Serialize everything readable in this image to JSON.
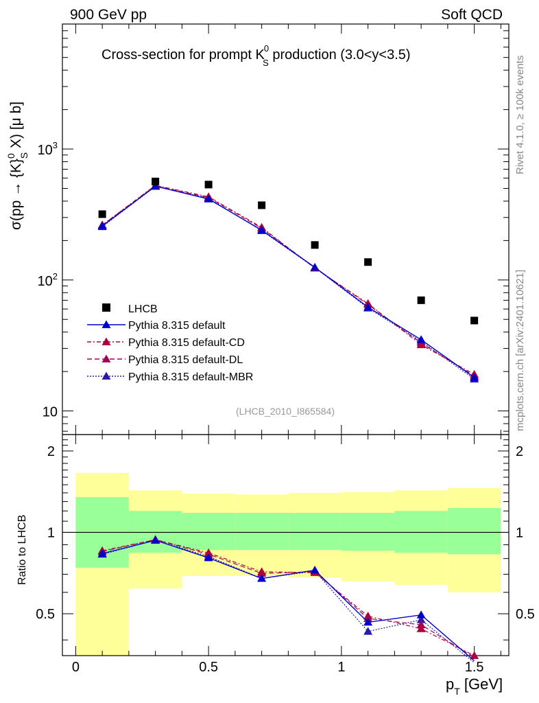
{
  "header": {
    "energy": "900 GeV pp",
    "process": "Soft QCD"
  },
  "side": {
    "rivet": "Rivet 4.1.0, ≥ 100k events",
    "site": "mcplots.cern.ch [arXiv:2401.10621]"
  },
  "colors": {
    "data": "#000000",
    "default": "#0000cc",
    "cd": "#b0003a",
    "dl": "#a0005a",
    "mbr": "#2a1aa8",
    "band_inner": "#99ff99",
    "band_outer": "#ffff99"
  },
  "chart_data": {
    "type": "line",
    "title": "Cross-section for prompt K",
    "title_sup": "0",
    "title_sub": "S",
    "title_tail": " production (3.0<y<3.5)",
    "analysis_tag": "(LHCB_2010_I865584)",
    "xlabel_main": "p",
    "xlabel_sub": "T",
    "xlabel_unit": " [GeV]",
    "ylabel_pre": "σ(pp → {K}",
    "ylabel_sup": "0",
    "ylabel_sub": "S",
    "ylabel_post": " X) [μ b]",
    "ratio_ylabel": "Ratio to LHCB",
    "xlim": [
      -0.05,
      1.63
    ],
    "ylim": [
      6.6,
      9000
    ],
    "ratio_ylim": [
      0.35,
      2.3
    ],
    "x_ticks": [
      0,
      0.5,
      1,
      1.5
    ],
    "x_tick_labels": [
      "0",
      "0.5",
      "1",
      "1.5"
    ],
    "y_ticks": [
      10,
      100,
      1000
    ],
    "y_tick_labels": [
      "10",
      "10",
      "10"
    ],
    "y_tick_sups": [
      "",
      "2",
      "3"
    ],
    "ratio_ticks": [
      0.5,
      1,
      2
    ],
    "ratio_tick_labels": [
      "0.5",
      "1",
      "2"
    ],
    "x": [
      0.1,
      0.3,
      0.5,
      0.7,
      0.9,
      1.1,
      1.3,
      1.5
    ],
    "bin_edges": [
      0,
      0.2,
      0.4,
      0.6,
      0.8,
      1.0,
      1.2,
      1.4,
      1.6
    ],
    "data": {
      "name": "LHCB",
      "values": [
        318,
        565,
        535,
        372,
        185,
        137,
        70,
        49
      ]
    },
    "ratio_band_inner": [
      [
        0.74,
        1.35
      ],
      [
        0.84,
        1.2
      ],
      [
        0.86,
        1.18
      ],
      [
        0.86,
        1.18
      ],
      [
        0.86,
        1.18
      ],
      [
        0.855,
        1.18
      ],
      [
        0.84,
        1.2
      ],
      [
        0.83,
        1.23
      ]
    ],
    "ratio_band_outer": [
      [
        0.35,
        1.66
      ],
      [
        0.62,
        1.43
      ],
      [
        0.69,
        1.39
      ],
      [
        0.69,
        1.38
      ],
      [
        0.68,
        1.4
      ],
      [
        0.66,
        1.41
      ],
      [
        0.64,
        1.43
      ],
      [
        0.6,
        1.46
      ]
    ],
    "series": [
      {
        "name": "Pythia 8.315 default",
        "key": "default",
        "values": [
          258,
          520,
          415,
          240,
          125,
          62,
          35,
          18
        ],
        "ratio": [
          0.835,
          0.935,
          0.805,
          0.675,
          0.725,
          0.465,
          0.495,
          0.335
        ]
      },
      {
        "name": "Pythia 8.315 default-CD",
        "key": "cd",
        "values": [
          263,
          528,
          432,
          252,
          123,
          66,
          32,
          19
        ],
        "ratio": [
          0.855,
          0.94,
          0.84,
          0.715,
          0.71,
          0.49,
          0.44,
          0.35
        ]
      },
      {
        "name": "Pythia 8.315 default-DL",
        "key": "dl",
        "values": [
          262,
          525,
          425,
          248,
          124,
          65,
          33,
          18.5
        ],
        "ratio": [
          0.85,
          0.94,
          0.83,
          0.705,
          0.715,
          0.48,
          0.455,
          0.345
        ]
      },
      {
        "name": "Pythia 8.315 default-MBR",
        "key": "mbr",
        "values": [
          255,
          518,
          420,
          238,
          124,
          61,
          34,
          17.5
        ],
        "ratio": [
          0.83,
          0.935,
          0.815,
          0.675,
          0.72,
          0.43,
          0.475,
          0.33
        ]
      }
    ]
  }
}
